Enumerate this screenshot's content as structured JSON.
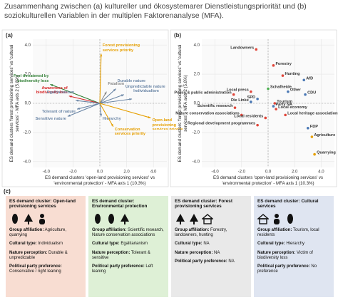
{
  "header": {
    "title": "Zusammenhang zwischen (a) kultureller und ökosystemarer Dienstleistungspriorität und (b) soziokulturellen Variablen in der multiplen Faktorenanalyse (MFA)."
  },
  "chart_data": [
    {
      "type": "biplot",
      "panel_label": "(a)",
      "x_label": "ES demand clusters 'open-land provisioning services' vs 'environmental protection' - MFA axis 1 (10.3%)",
      "y_label": "ES demand clusters 'forest provisioning services' vs 'cultural services' - MFA axis 2 (5.8%)",
      "xlim": [
        -5,
        5
      ],
      "ylim": [
        -4.4,
        4.4
      ],
      "xticks": [
        {
          "value": -4,
          "label": "-4.0"
        },
        {
          "value": -2,
          "label": "-2.0"
        },
        {
          "value": 0,
          "label": "0.0"
        },
        {
          "value": 2,
          "label": "2.0"
        },
        {
          "value": 4,
          "label": "4.0"
        }
      ],
      "yticks": [
        {
          "value": -4,
          "label": "-4.0"
        },
        {
          "value": -2,
          "label": "-2.0"
        },
        {
          "value": 0,
          "label": "0.0"
        },
        {
          "value": 2,
          "label": "2.0"
        },
        {
          "value": 4,
          "label": "4.0"
        }
      ],
      "grid": true,
      "arrows": [
        {
          "label": "Forest provisioning services priority",
          "x": 0.1,
          "y": 3.4,
          "color": "#e69f00"
        },
        {
          "label": "Feel threatened by biodiversity loss",
          "x": -3.7,
          "y": 1.3,
          "color": "#2e7d32"
        },
        {
          "label": "Awareness of biodiversity loss",
          "x": -2.3,
          "y": 0.5,
          "color": "#d62728"
        },
        {
          "label": "Egalitarianism",
          "x": -1.8,
          "y": 0.2,
          "color": "#6b86a6"
        },
        {
          "label": "Tolerant of nature",
          "x": -1.7,
          "y": -0.4,
          "color": "#6b86a6"
        },
        {
          "label": "Sensitive nature",
          "x": -2.4,
          "y": -0.9,
          "color": "#6b86a6"
        },
        {
          "label": "Fatalism",
          "x": 0.5,
          "y": 0.8,
          "color": "#8a8a8a"
        },
        {
          "label": "Durable nature",
          "x": 1.2,
          "y": 1.0,
          "color": "#6b86a6"
        },
        {
          "label": "Unpredictable nature",
          "x": 1.8,
          "y": 0.6,
          "color": "#6b86a6"
        },
        {
          "label": "Individualism",
          "x": 2.4,
          "y": 0.3,
          "color": "#6b86a6"
        },
        {
          "label": "Hierarchy",
          "x": 0.1,
          "y": -0.9,
          "color": "#6b86a6"
        },
        {
          "label": "Open-land provisioning services priority",
          "x": 3.8,
          "y": -1.0,
          "color": "#e69f00"
        },
        {
          "label": "Conservation services priority",
          "x": 1.0,
          "y": -1.6,
          "color": "#e69f00"
        }
      ]
    },
    {
      "type": "scatter",
      "panel_label": "(b)",
      "x_label": "ES demand clusters 'open-land provisioning services' vs 'environmental protection' - MFA axis 1 (10.3%)",
      "y_label": "ES demand clusters 'forest provisioning services' vs 'cultural services' - MFA axis 2 (5.8%)",
      "xlim": [
        -5,
        5
      ],
      "ylim": [
        -4.4,
        4.4
      ],
      "xticks": [
        {
          "value": -4,
          "label": "-4.0"
        },
        {
          "value": -2,
          "label": "-2.0"
        },
        {
          "value": 0,
          "label": "0.0"
        },
        {
          "value": 2,
          "label": "2.0"
        },
        {
          "value": 4,
          "label": "4.0"
        }
      ],
      "yticks": [
        {
          "value": -4,
          "label": "-4.0"
        },
        {
          "value": -2,
          "label": "-2.0"
        },
        {
          "value": 0,
          "label": "0.0"
        },
        {
          "value": 2,
          "label": "2.0"
        },
        {
          "value": 4,
          "label": "4.0"
        }
      ],
      "grid": true,
      "points": [
        {
          "label": "Landowners",
          "x": -0.9,
          "y": 3.7,
          "color": "#e0463a"
        },
        {
          "label": "Forestry",
          "x": 0.4,
          "y": 2.6,
          "color": "#e0463a"
        },
        {
          "label": "Hunting",
          "x": 1.1,
          "y": 1.9,
          "color": "#e0463a"
        },
        {
          "label": "AfD",
          "x": 2.7,
          "y": 1.6,
          "color": "#4a78b5"
        },
        {
          "label": "Schafheide",
          "x": 0.0,
          "y": 1.0,
          "color": "#4caf50"
        },
        {
          "label": "Other",
          "x": 1.5,
          "y": 0.8,
          "color": "#4a78b5"
        },
        {
          "label": "CDU",
          "x": 2.8,
          "y": 0.6,
          "color": "#4a78b5"
        },
        {
          "label": "Local press",
          "x": -1.3,
          "y": 0.8,
          "color": "#e0463a"
        },
        {
          "label": "Policy & public administration",
          "x": -2.6,
          "y": 0.6,
          "color": "#e0463a"
        },
        {
          "label": "SPD",
          "x": -0.8,
          "y": 0.3,
          "color": "#4a78b5"
        },
        {
          "label": "Die Linke",
          "x": -1.3,
          "y": 0.1,
          "color": "#4a78b5"
        },
        {
          "label": "Tourism",
          "x": 0.5,
          "y": 0.0,
          "color": "#e0463a"
        },
        {
          "label": "Party NA",
          "x": 0.4,
          "y": -0.2,
          "color": "#4a78b5"
        },
        {
          "label": "Scientific research",
          "x": -2.5,
          "y": -0.3,
          "color": "#e0463a"
        },
        {
          "label": "Local economy",
          "x": 0.6,
          "y": -0.4,
          "color": "#e0463a"
        },
        {
          "label": "Nature conservation associations",
          "x": -2.0,
          "y": -0.8,
          "color": "#e0463a"
        },
        {
          "label": "Local heritage associations",
          "x": 1.3,
          "y": -0.8,
          "color": "#e0463a"
        },
        {
          "label": "Local residents",
          "x": -0.2,
          "y": -1.0,
          "color": "#e0463a"
        },
        {
          "label": "Regional development programmes",
          "x": -0.8,
          "y": -1.5,
          "color": "#e0463a"
        },
        {
          "label": "FDP",
          "x": 3.0,
          "y": -1.7,
          "color": "#4a78b5"
        },
        {
          "label": "Agriculture",
          "x": 3.3,
          "y": -2.3,
          "color": "#e69f00"
        },
        {
          "label": "Quarrying",
          "x": 3.5,
          "y": -3.5,
          "color": "#e69f00"
        }
      ]
    }
  ],
  "cards": {
    "panel_label": "(c)",
    "field_labels": [
      "Group affiliation:",
      "Cultural type:",
      "Nature perception:",
      "Political party preference:"
    ],
    "items": [
      {
        "title": "ES demand cluster: Open-land provisioning services",
        "color": "#f8ddd2",
        "fields": [
          "Agriculture, quarrying",
          "Individualism",
          "Durable & unpredictable",
          "Conservative / right leaning"
        ]
      },
      {
        "title": "ES demand cluster: Environmental protection",
        "color": "#def0d6",
        "fields": [
          "Scientific research, Nature conservation associations",
          "Egalitarianism",
          "Tolerant & sensitive",
          "Left leaning"
        ]
      },
      {
        "title": "ES demand cluster: Forest provisioning services",
        "color": "#e9e9e9",
        "fields": [
          "Forestry, landowners, hunting",
          "NA",
          "NA",
          "NA"
        ]
      },
      {
        "title": "ES demand cluster: Cultural services",
        "color": "#dfe5f1",
        "fields": [
          "Tourism, local residents",
          "Hierarchy",
          "Victim of biodiversity loss",
          "No preference"
        ]
      }
    ]
  }
}
